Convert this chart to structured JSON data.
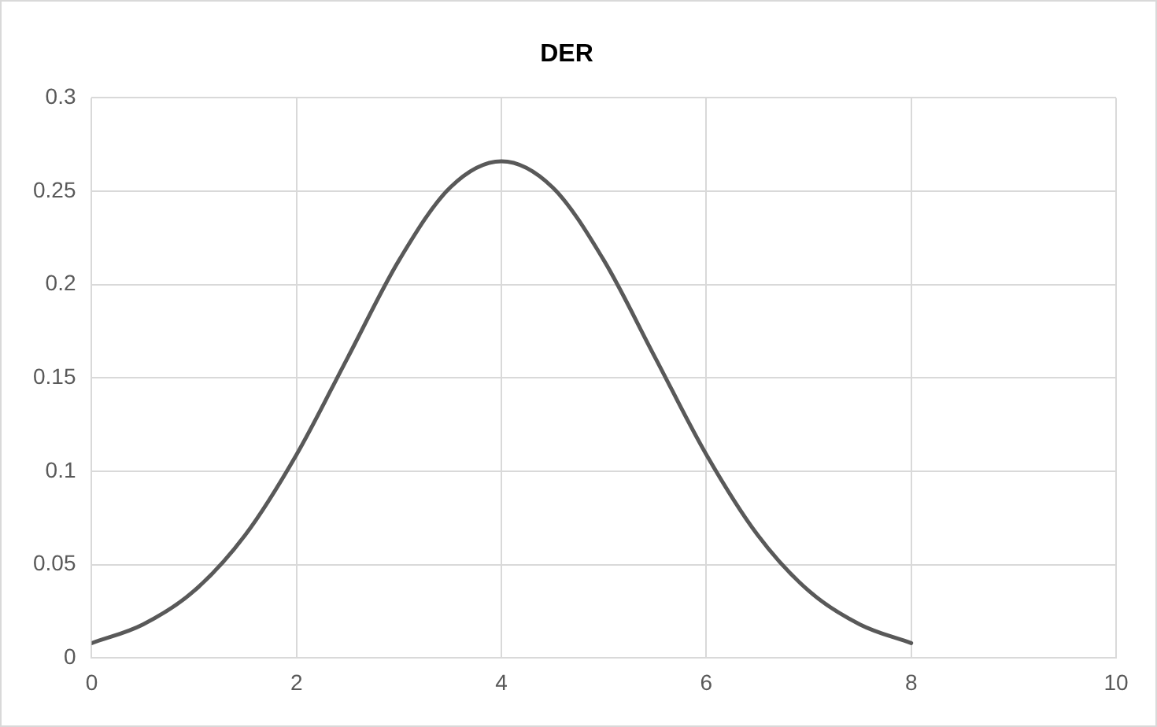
{
  "chart_data": {
    "type": "line",
    "title": "DER",
    "x": [
      0,
      0.5,
      1,
      1.5,
      2,
      2.5,
      3,
      3.5,
      4,
      4.5,
      5,
      5.5,
      6,
      6.5,
      7,
      7.5,
      8
    ],
    "series": [
      {
        "color": "#595959",
        "values": [
          0.008,
          0.018,
          0.036,
          0.066,
          0.109,
          0.161,
          0.213,
          0.252,
          0.266,
          0.252,
          0.213,
          0.161,
          0.109,
          0.066,
          0.036,
          0.018,
          0.008
        ]
      }
    ],
    "xlim": [
      0,
      10
    ],
    "xticks": [
      0,
      2,
      4,
      6,
      8,
      10
    ],
    "ylim": [
      0,
      0.3
    ],
    "yticks": [
      0,
      0.05,
      0.1,
      0.15,
      0.2,
      0.25,
      0.3
    ],
    "grid": true,
    "legend": false,
    "marker": "none",
    "line_style": "solid"
  }
}
